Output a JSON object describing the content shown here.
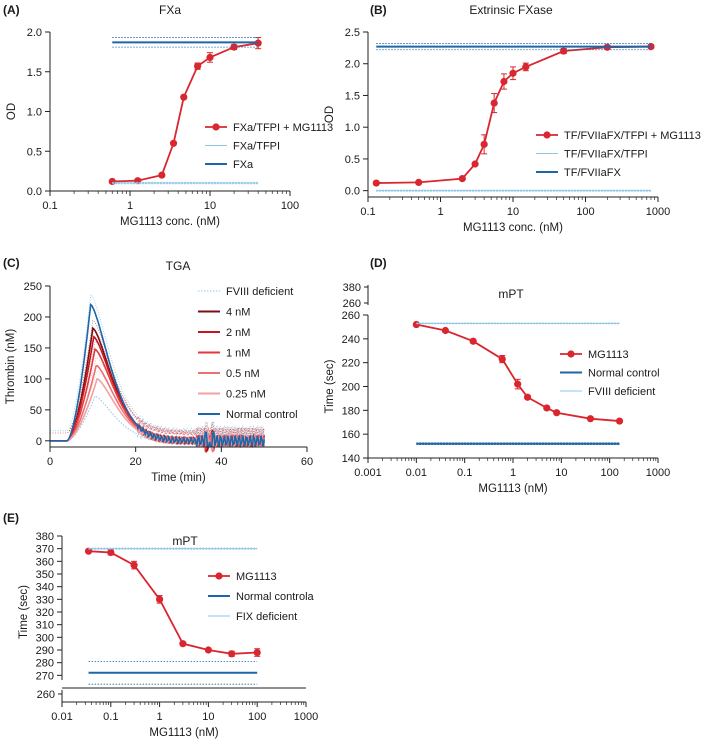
{
  "colors": {
    "red": "#d9262f",
    "blue": "#1f66a8",
    "light_blue": "#8fc6e6",
    "axis": "#222222",
    "tga_series": [
      "#7a0e14",
      "#c4161c",
      "#e0393e",
      "#ec6f72",
      "#f2a0a2"
    ]
  },
  "chart_data": [
    {
      "panel": "(A)",
      "type": "line",
      "title": "FXa",
      "xlabel": "MG1113 conc. (nM)",
      "ylabel": "OD",
      "xscale": "log",
      "xlim": [
        0.1,
        100
      ],
      "ylim": [
        0,
        2.0
      ],
      "xticks": [
        0.1,
        1,
        10,
        100
      ],
      "xtick_labels": [
        "0.1",
        "1",
        "10",
        "100"
      ],
      "yticks": [
        0,
        0.5,
        1.0,
        1.5,
        2.0
      ],
      "ytick_labels": [
        "0.0",
        "0.5",
        "1.0",
        "1.5",
        "2.0"
      ],
      "legend_position": "right",
      "series": [
        {
          "name": "FXa/TFPI + MG1113",
          "kind": "markers_line",
          "color": "red",
          "x": [
            0.6,
            1.25,
            2.5,
            3.5,
            4.7,
            7.0,
            10,
            20,
            40
          ],
          "y": [
            0.12,
            0.13,
            0.2,
            0.6,
            1.18,
            1.57,
            1.68,
            1.81,
            1.86
          ],
          "err": [
            0,
            0,
            0,
            0,
            0,
            0.04,
            0.06,
            0.03,
            0.07
          ]
        },
        {
          "name": "FXa/TFPI",
          "kind": "hline_band",
          "color": "light_blue",
          "y": 0.1,
          "band": 0.01,
          "x_range": [
            0.6,
            40
          ]
        },
        {
          "name": "FXa",
          "kind": "hline_band",
          "color": "blue",
          "y": 1.87,
          "band": 0.06,
          "x_range": [
            0.6,
            40
          ]
        }
      ]
    },
    {
      "panel": "(B)",
      "type": "line",
      "title": "Extrinsic FXase",
      "xlabel": "MG1113 conc. (nM)",
      "ylabel": "OD",
      "xscale": "log",
      "xlim": [
        0.1,
        1000
      ],
      "ylim": [
        -0.1,
        2.5
      ],
      "xticks": [
        0.1,
        1,
        10,
        100,
        1000
      ],
      "xtick_labels": [
        "0.1",
        "1",
        "10",
        "100",
        "1000"
      ],
      "yticks": [
        0,
        0.5,
        1.0,
        1.5,
        2.0,
        2.5
      ],
      "ytick_labels": [
        "0.0",
        "0.5",
        "1.0",
        "1.5",
        "2.0",
        "2.5"
      ],
      "legend_position": "right",
      "series": [
        {
          "name": "TF/FVIIaFX/TFPI + MG1113",
          "kind": "markers_line",
          "color": "red",
          "x": [
            0.13,
            0.5,
            2.0,
            3.0,
            4.0,
            5.5,
            7.5,
            10,
            15,
            50,
            200,
            800
          ],
          "y": [
            0.12,
            0.13,
            0.19,
            0.42,
            0.73,
            1.38,
            1.72,
            1.85,
            1.95,
            2.2,
            2.26,
            2.27
          ],
          "err": [
            0,
            0,
            0,
            0,
            0.15,
            0.15,
            0.12,
            0.1,
            0.06,
            0.04,
            0.03,
            0.03
          ]
        },
        {
          "name": "TF/FVIIaFX/TFPI",
          "kind": "hline_band",
          "color": "light_blue",
          "y": 0.0,
          "band": 0.01,
          "x_range": [
            0.13,
            800
          ]
        },
        {
          "name": "TF/FVIIaFX",
          "kind": "hline_band",
          "color": "blue",
          "y": 2.27,
          "band": 0.05,
          "x_range": [
            0.13,
            800
          ]
        }
      ]
    },
    {
      "panel": "(C)",
      "type": "line",
      "title": "TGA",
      "xlabel": "Time (min)",
      "ylabel": "Thrombin (nM)",
      "xscale": "linear",
      "xlim": [
        0,
        60
      ],
      "ylim": [
        -10,
        250
      ],
      "xticks": [
        0,
        20,
        40,
        60
      ],
      "xtick_labels": [
        "0",
        "20",
        "40",
        "60"
      ],
      "yticks": [
        0,
        50,
        100,
        150,
        200,
        250
      ],
      "ytick_labels": [
        "0",
        "50",
        "100",
        "150",
        "200",
        "250"
      ],
      "legend_position": "right",
      "series": [
        {
          "name": "FVIII deficient",
          "kind": "curve",
          "color": "light_blue",
          "dotted": true,
          "peak": 72,
          "peak_time": 10.5
        },
        {
          "name": "4 nM",
          "kind": "curve",
          "color": "tga_0",
          "peak": 182,
          "peak_time": 10
        },
        {
          "name": "2 nM",
          "kind": "curve",
          "color": "tga_1",
          "peak": 168,
          "peak_time": 10.2
        },
        {
          "name": "1 nM",
          "kind": "curve",
          "color": "tga_2",
          "peak": 148,
          "peak_time": 10.5
        },
        {
          "name": "0.5 nM",
          "kind": "curve",
          "color": "tga_3",
          "peak": 122,
          "peak_time": 10.8
        },
        {
          "name": "0.25 nM",
          "kind": "curve",
          "color": "tga_4",
          "peak": 100,
          "peak_time": 11
        },
        {
          "name": "Normal control",
          "kind": "curve",
          "color": "blue",
          "peak": 220,
          "peak_time": 9.5
        }
      ]
    },
    {
      "panel": "(D)",
      "type": "line",
      "title": "mPT",
      "xlabel": "MG1113 (nM)",
      "ylabel": "Time (sec)",
      "xscale": "log",
      "xlim": [
        0.001,
        1000
      ],
      "ylim": [
        140,
        260
      ],
      "broken_axis_upper_ticks": [
        "260",
        "380"
      ],
      "xticks": [
        0.001,
        0.01,
        0.1,
        1,
        10,
        100,
        1000
      ],
      "xtick_labels": [
        "0.001",
        "0.01",
        "0.1",
        "1",
        "10",
        "100",
        "1000"
      ],
      "yticks": [
        140,
        160,
        180,
        200,
        220,
        240,
        260
      ],
      "ytick_labels": [
        "140",
        "160",
        "180",
        "200",
        "220",
        "240",
        "260"
      ],
      "legend_position": "right",
      "series": [
        {
          "name": "MG1113",
          "kind": "markers_line",
          "color": "red",
          "x": [
            0.01,
            0.04,
            0.15,
            0.6,
            1.25,
            2.0,
            5.0,
            8.0,
            40,
            160
          ],
          "y": [
            252,
            247,
            238,
            223,
            202,
            191,
            182,
            178,
            173,
            171
          ],
          "err": [
            0,
            0,
            0,
            3,
            4,
            0,
            0,
            0,
            0,
            0
          ]
        },
        {
          "name": "Normal control",
          "kind": "hline_band",
          "color": "blue",
          "y": 152,
          "band": 0.8,
          "x_range": [
            0.01,
            160
          ]
        },
        {
          "name": "FVIII deficient",
          "kind": "hline_band",
          "color": "light_blue",
          "y": 253,
          "band": 0.4,
          "x_range": [
            0.01,
            160
          ]
        }
      ]
    },
    {
      "panel": "(E)",
      "type": "line",
      "title": "mPT",
      "xlabel": "MG1113 (nM)",
      "ylabel": "Time (sec)",
      "xscale": "log",
      "xlim": [
        0.01,
        1000
      ],
      "ylim": [
        260,
        380
      ],
      "broken_axis_lower_tick": "260",
      "xticks": [
        0.01,
        0.1,
        1,
        10,
        100,
        1000
      ],
      "xtick_labels": [
        "0.01",
        "0.1",
        "1",
        "10",
        "100",
        "1000"
      ],
      "yticks": [
        270,
        280,
        290,
        300,
        310,
        320,
        330,
        340,
        350,
        360,
        370,
        380
      ],
      "ytick_labels": [
        "270",
        "280",
        "290",
        "300",
        "310",
        "320",
        "330",
        "340",
        "350",
        "360",
        "370",
        "380"
      ],
      "legend_position": "right",
      "series": [
        {
          "name": "MG1113",
          "kind": "markers_line",
          "color": "red",
          "x": [
            0.035,
            0.1,
            0.3,
            1.0,
            3.0,
            10,
            30,
            100
          ],
          "y": [
            368,
            367,
            357,
            330,
            295,
            290,
            287,
            288
          ],
          "err": [
            0,
            2,
            3,
            3,
            0,
            0,
            2,
            3
          ]
        },
        {
          "name": "Normal controla",
          "kind": "hline_band",
          "color": "blue",
          "y": 272,
          "band": 9,
          "x_range": [
            0.035,
            100
          ]
        },
        {
          "name": "FIX deficient",
          "kind": "hline_band",
          "color": "light_blue",
          "y": 370,
          "band": 0.5,
          "x_range": [
            0.035,
            100
          ]
        }
      ]
    }
  ]
}
